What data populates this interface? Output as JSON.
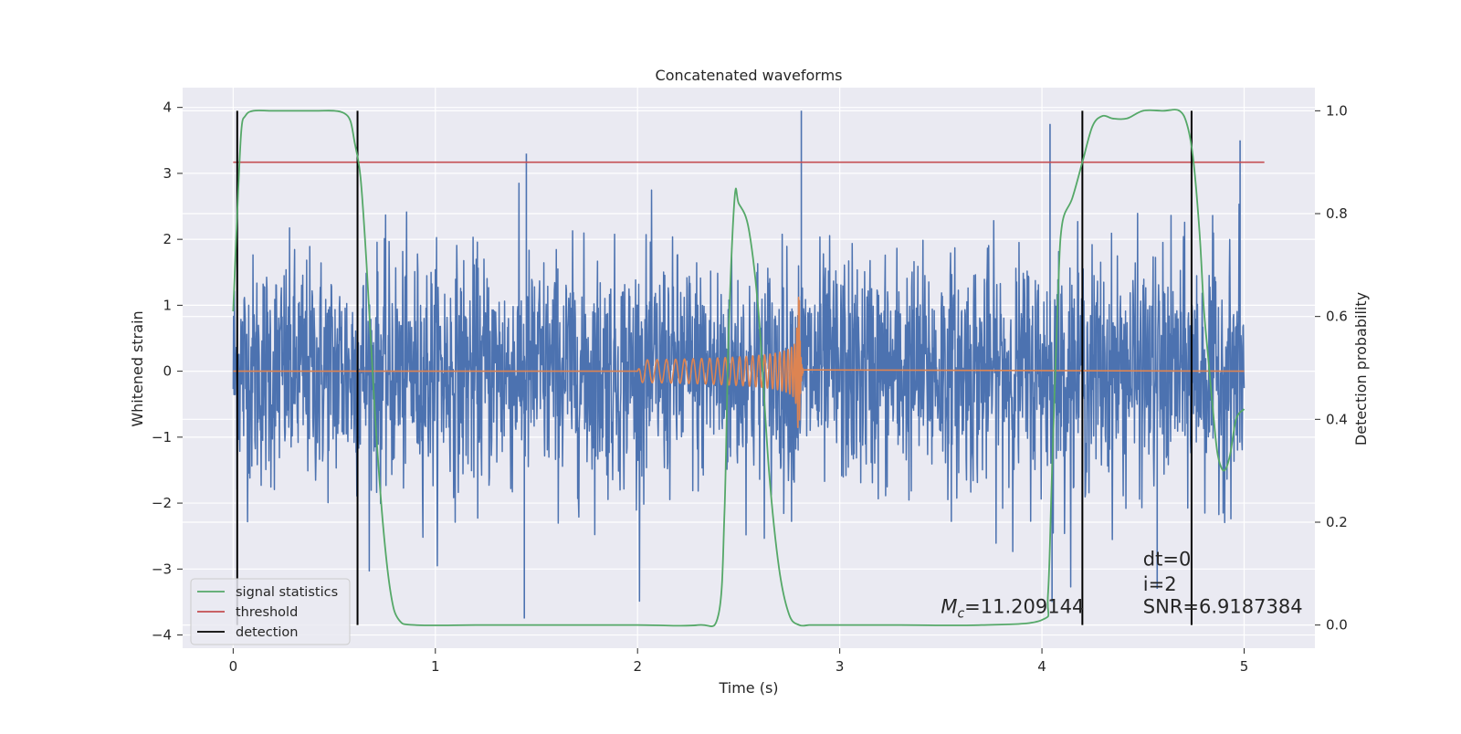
{
  "chart_data": {
    "type": "line",
    "title": "Concatenated waveforms",
    "xlabel": "Time (s)",
    "ylabel": "Whitened strain",
    "ylabel_right": "Detection probability",
    "xlim": [
      -0.25,
      5.35
    ],
    "ylim": [
      -4.2,
      4.3
    ],
    "ylim_right": [
      -0.045,
      1.045
    ],
    "xticks": [
      0,
      1,
      2,
      3,
      4,
      5
    ],
    "yticks": [
      -4,
      -3,
      -2,
      -1,
      0,
      1,
      2,
      3,
      4
    ],
    "yticks_right": [
      0.0,
      0.2,
      0.4,
      0.6,
      0.8,
      1.0
    ],
    "ytick_labels": [
      "−4",
      "−3",
      "−2",
      "−1",
      "0",
      "1",
      "2",
      "3",
      "4"
    ],
    "ytick_labels_right": [
      "0.0",
      "0.2",
      "0.4",
      "0.6",
      "0.8",
      "1.0"
    ],
    "grid": true,
    "legend_position": "lower-left",
    "series": [
      {
        "name": "signal statistics",
        "axis": "right",
        "color": "#55a868",
        "x": [
          0.0,
          0.02,
          0.04,
          0.06,
          0.1,
          0.2,
          0.4,
          0.5,
          0.55,
          0.58,
          0.6,
          0.63,
          0.66,
          0.7,
          0.74,
          0.78,
          0.82,
          0.9,
          1.2,
          1.5,
          2.0,
          2.3,
          2.4,
          2.43,
          2.45,
          2.48,
          2.5,
          2.55,
          2.6,
          2.65,
          2.7,
          2.75,
          2.8,
          2.85,
          2.9,
          3.3,
          3.7,
          4.0,
          4.03,
          4.05,
          4.08,
          4.1,
          4.15,
          4.2,
          4.25,
          4.3,
          4.35,
          4.42,
          4.5,
          4.6,
          4.68,
          4.72,
          4.75,
          4.78,
          4.8,
          4.82,
          4.85,
          4.87,
          4.9,
          4.93,
          4.96,
          5.0
        ],
        "y": [
          0.61,
          0.8,
          0.96,
          0.99,
          1.0,
          1.0,
          1.0,
          1.0,
          0.995,
          0.98,
          0.94,
          0.87,
          0.7,
          0.42,
          0.2,
          0.06,
          0.01,
          0.0,
          0.0,
          0.0,
          0.0,
          0.0,
          0.02,
          0.22,
          0.56,
          0.83,
          0.82,
          0.77,
          0.6,
          0.3,
          0.11,
          0.02,
          0.0,
          0.0,
          0.0,
          0.0,
          0.0,
          0.01,
          0.06,
          0.3,
          0.65,
          0.78,
          0.83,
          0.9,
          0.97,
          0.99,
          0.985,
          0.985,
          1.0,
          1.0,
          1.0,
          0.97,
          0.9,
          0.76,
          0.62,
          0.53,
          0.4,
          0.33,
          0.3,
          0.33,
          0.4,
          0.42
        ]
      },
      {
        "name": "threshold",
        "axis": "right",
        "color": "#c44e52",
        "x": [
          0.0,
          5.1
        ],
        "y": [
          0.9,
          0.9
        ]
      },
      {
        "name": "detection",
        "axis": "right",
        "color": "#000000",
        "style": "vertical-lines",
        "x": [
          0.02,
          0.615,
          4.2,
          4.74
        ],
        "y_range": [
          0.0,
          1.0
        ]
      },
      {
        "name": "",
        "axis": "left",
        "color": "#4c72b0",
        "style": "noise",
        "x_range": [
          0.0,
          5.0
        ],
        "amplitude": 0.87,
        "peak_range": [
          -3.75,
          3.95
        ],
        "spikes": [
          {
            "x": 1.44,
            "y": -3.75
          },
          {
            "x": 1.45,
            "y": 3.3
          },
          {
            "x": 2.81,
            "y": 3.95
          },
          {
            "x": 4.05,
            "y": -3.5
          },
          {
            "x": 4.04,
            "y": 3.75
          },
          {
            "x": 4.57,
            "y": -3.3
          },
          {
            "x": 4.98,
            "y": 3.5
          }
        ]
      },
      {
        "name": "",
        "axis": "left",
        "color": "#dd8452",
        "style": "chirp",
        "x_range": [
          2.0,
          2.82
        ],
        "merger_x": 2.8,
        "peak_y": [
          1.38,
          -0.97
        ]
      }
    ],
    "annotations": [
      {
        "text": "dt=0",
        "x": 4.5,
        "y": -2.95
      },
      {
        "text": "i=2",
        "x": 4.5,
        "y": -3.33
      },
      {
        "text": "SNR=6.9187384",
        "x": 4.5,
        "y": -3.67
      },
      {
        "text_math_base": "M",
        "text_math_sub": "c",
        "text_rest": "=11.209144",
        "x": 3.5,
        "y": -3.67
      }
    ]
  }
}
